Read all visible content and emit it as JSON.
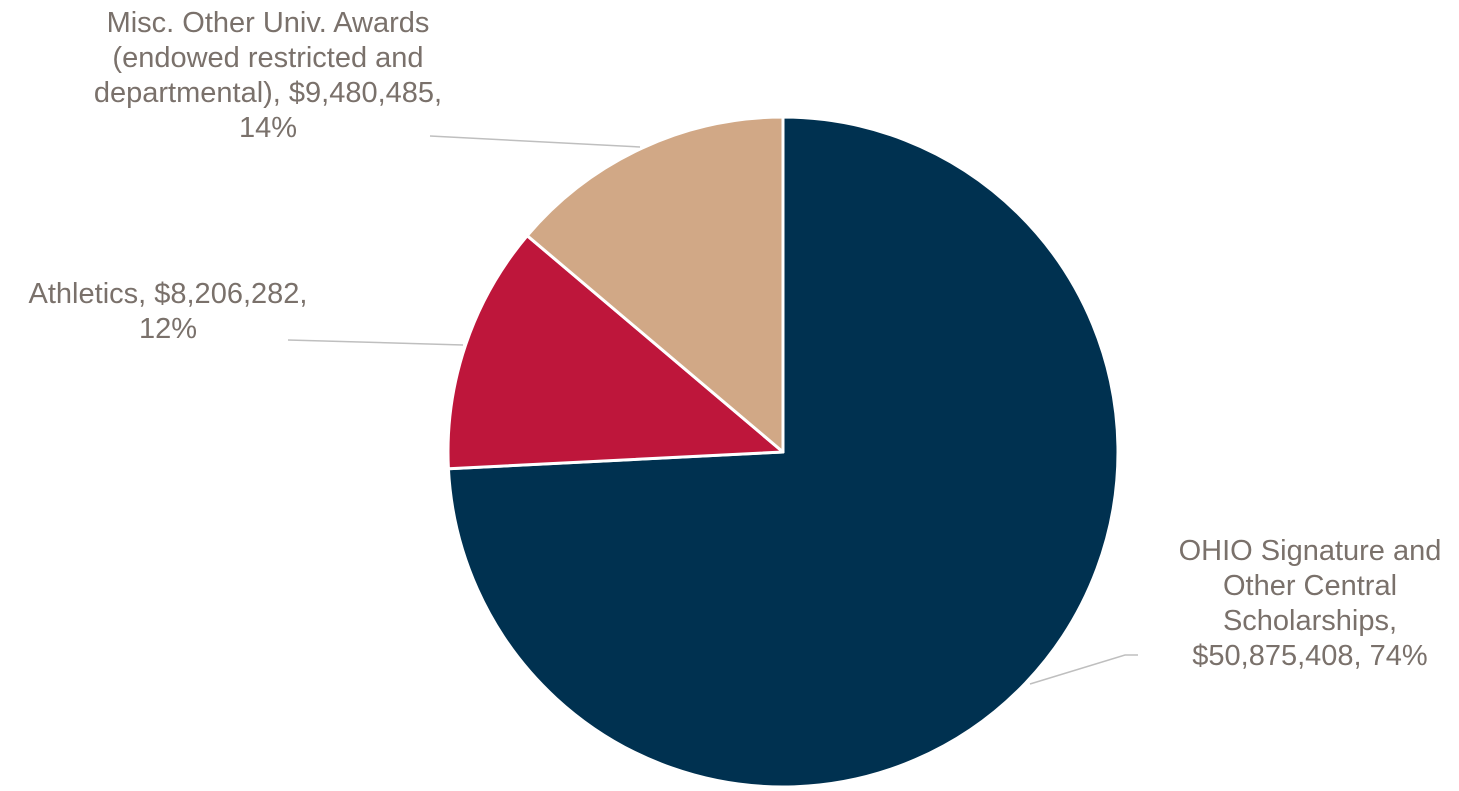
{
  "chart_data": {
    "type": "pie",
    "title": "",
    "start_angle_deg": 0,
    "direction": "clockwise",
    "slices": [
      {
        "label_lines": [
          "OHIO Signature and",
          "Other Central",
          "Scholarships,",
          "$50,875,408, 74%"
        ],
        "category": "OHIO Signature and Other Central Scholarships",
        "value": 50875408,
        "percent": "74%",
        "color": "#003150"
      },
      {
        "label_lines": [
          "Athletics, $8,206,282,",
          "12%"
        ],
        "category": "Athletics",
        "value": 8206282,
        "percent": "12%",
        "color": "#BE163B"
      },
      {
        "label_lines": [
          "Misc. Other Univ. Awards",
          "(endowed restricted and",
          "departmental), $9,480,485,",
          "14%"
        ],
        "category": "Misc. Other Univ. Awards (endowed restricted and departmental)",
        "value": 9480485,
        "percent": "14%",
        "color": "#D1A886"
      }
    ],
    "label_color": "#7A716B",
    "leader_line_color": "#BFBFBF",
    "slice_border_color": "#FFFFFF"
  }
}
